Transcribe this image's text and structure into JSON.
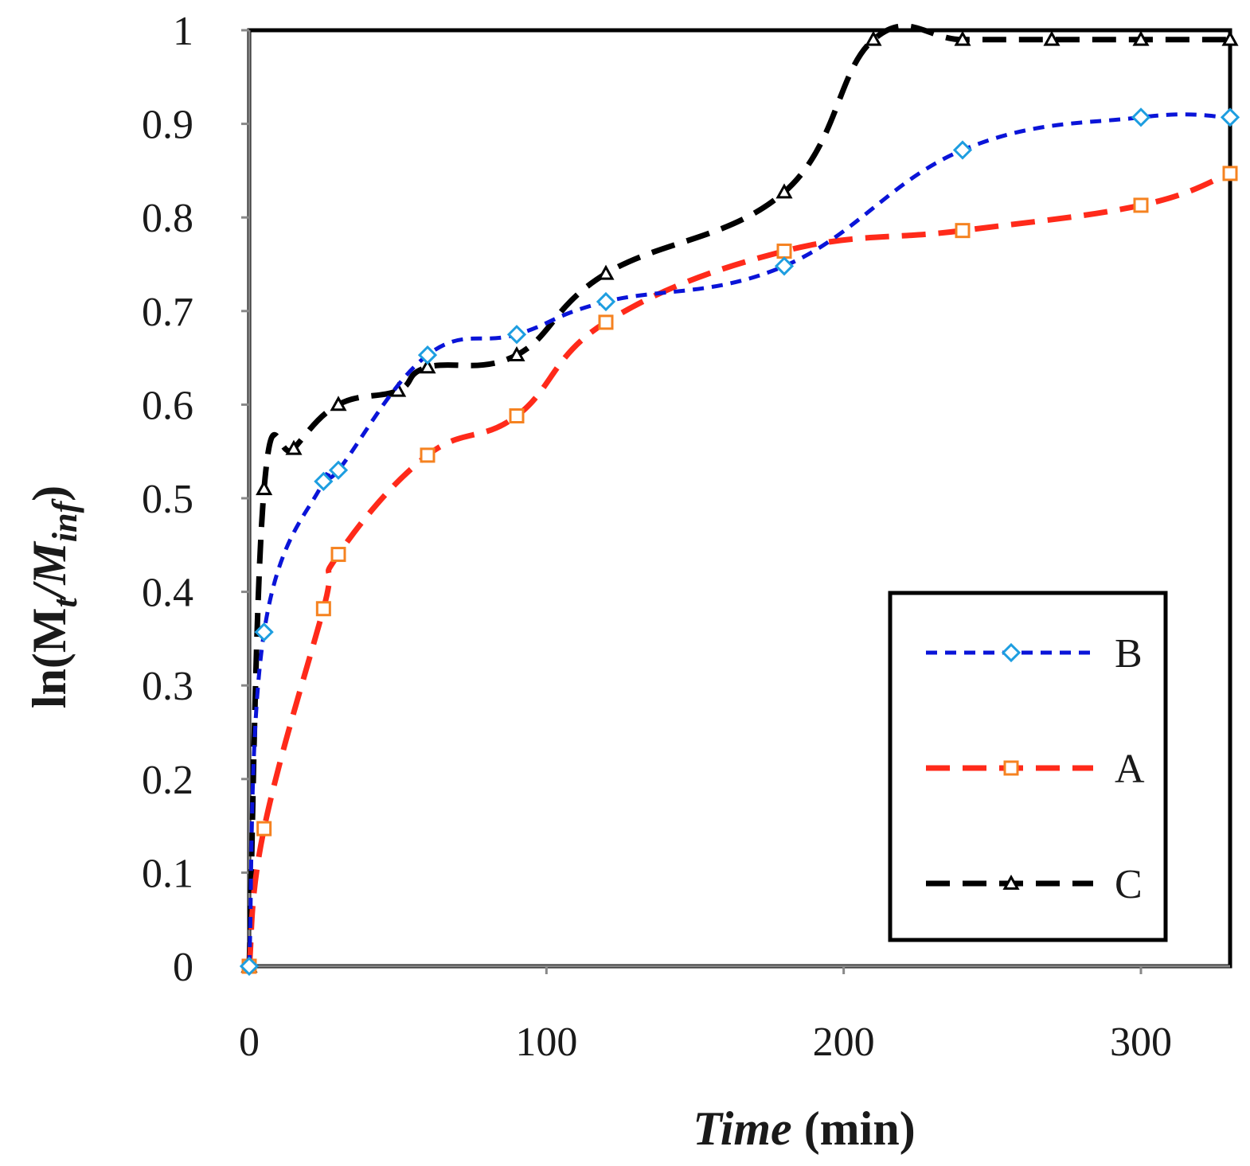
{
  "chart_data": {
    "type": "line",
    "xlabel_italic": "Time",
    "xlabel_rest": " (min)",
    "ylabel_main": "ln(M",
    "ylabel_sub1": "t",
    "ylabel_mid": "/M",
    "ylabel_sub2": "inf",
    "ylabel_end": ")",
    "xlim": [
      0,
      330
    ],
    "ylim": [
      0,
      1
    ],
    "xticks": [
      0,
      100,
      200,
      300
    ],
    "yticks": [
      0,
      0.1,
      0.2,
      0.3,
      0.4,
      0.5,
      0.6,
      0.7,
      0.8,
      0.9,
      1
    ],
    "ytick_labels": [
      "0",
      "0.1",
      "0.2",
      "0.3",
      "0.4",
      "0.5",
      "0.6",
      "0.7",
      "0.8",
      "0.9",
      "1"
    ],
    "legend_position": "lower-right",
    "series": [
      {
        "name": "B",
        "color": "#0a14d8",
        "marker": "diamond",
        "marker_color": "#1e9ee0",
        "dash": "14 10",
        "x": [
          0,
          5,
          25,
          30,
          60,
          90,
          120,
          180,
          240,
          300,
          330
        ],
        "y": [
          0,
          0.357,
          0.518,
          0.53,
          0.653,
          0.675,
          0.71,
          0.748,
          0.872,
          0.907,
          0.907
        ]
      },
      {
        "name": "A",
        "color": "#ff2a1a",
        "marker": "square",
        "marker_color": "#f58220",
        "dash": "30 16",
        "x": [
          0,
          5,
          25,
          30,
          60,
          90,
          120,
          180,
          240,
          300,
          330
        ],
        "y": [
          0,
          0.147,
          0.382,
          0.44,
          0.546,
          0.588,
          0.688,
          0.764,
          0.786,
          0.813,
          0.847
        ]
      },
      {
        "name": "C",
        "color": "#000000",
        "marker": "triangle",
        "marker_color": "#000000",
        "dash": "30 16",
        "x": [
          0,
          5,
          15,
          30,
          50,
          60,
          90,
          120,
          180,
          210,
          240,
          270,
          300,
          330
        ],
        "y": [
          0,
          0.51,
          0.553,
          0.6,
          0.615,
          0.64,
          0.653,
          0.74,
          0.827,
          0.99,
          0.99,
          0.99,
          0.99,
          0.99
        ]
      }
    ]
  }
}
